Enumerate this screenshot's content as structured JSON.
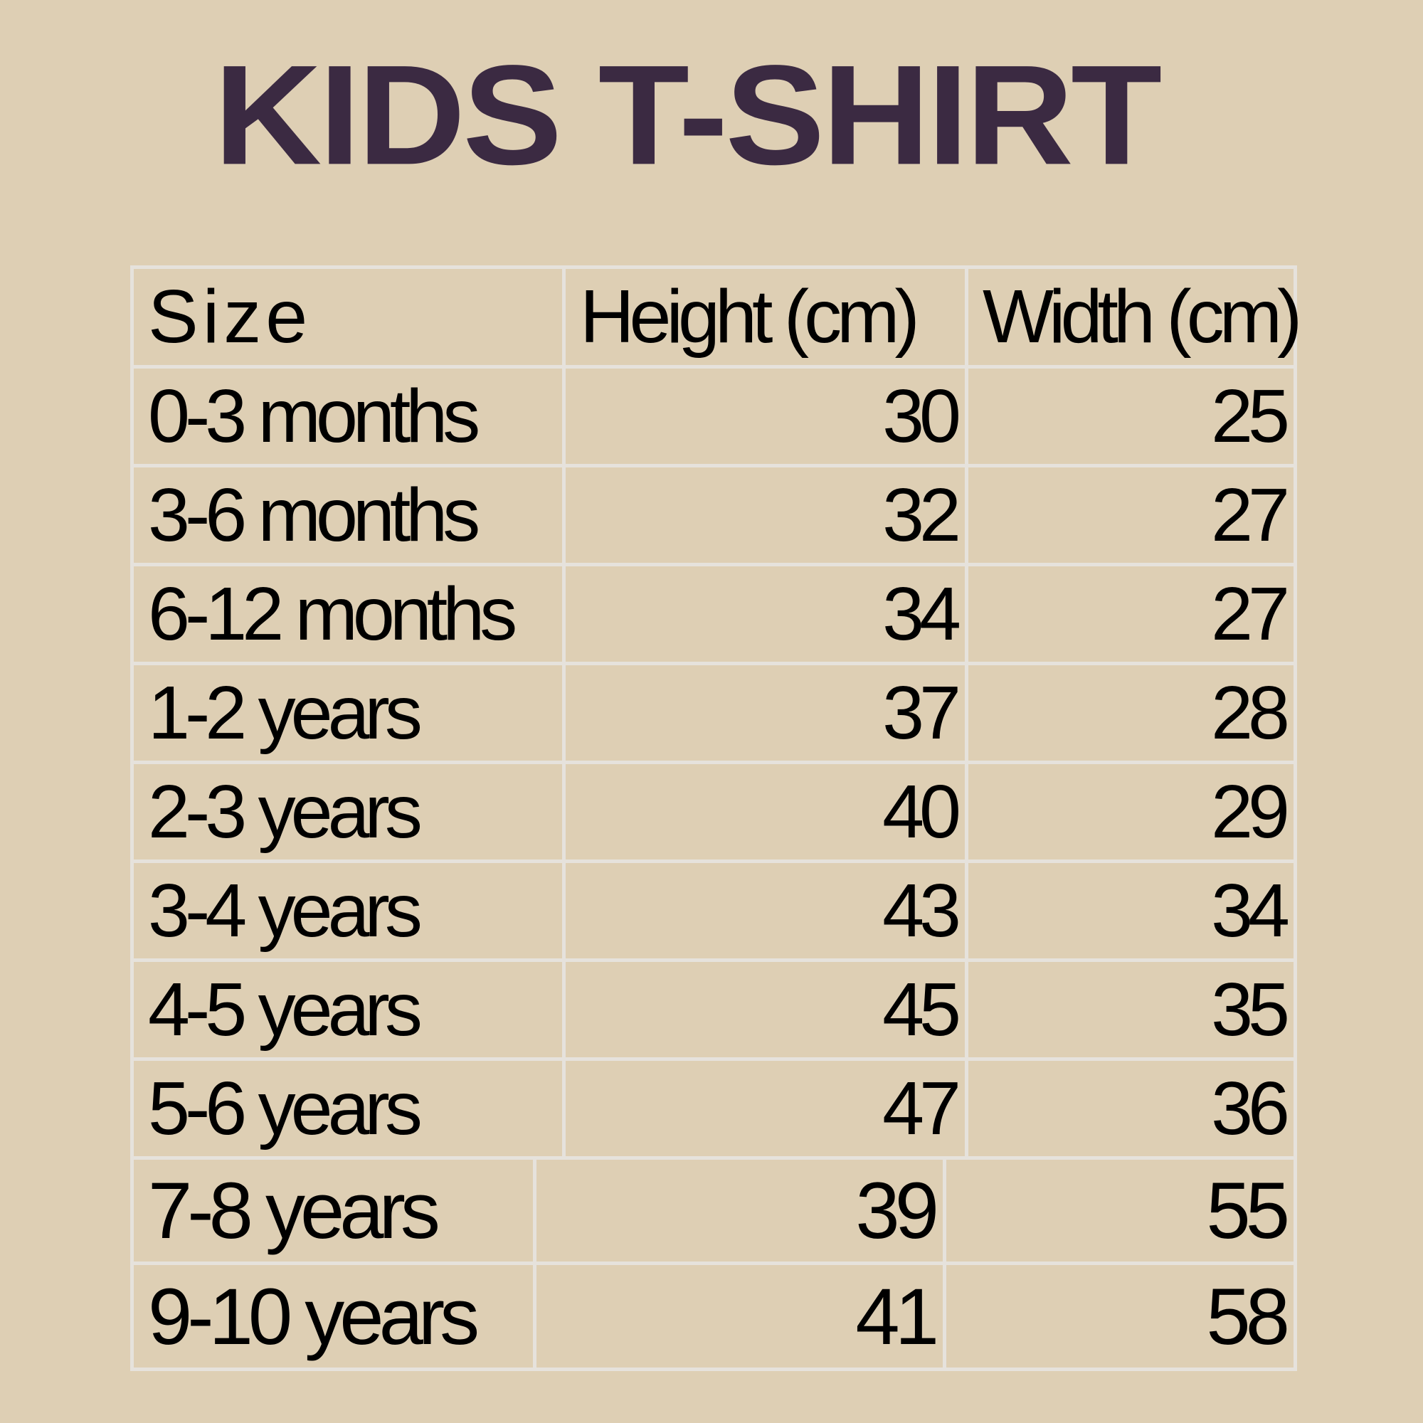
{
  "title": "KIDS T-SHIRT",
  "table": {
    "headers": [
      "Size",
      "Height (cm)",
      "Width (cm)"
    ],
    "rows": [
      [
        "0-3 months",
        "30",
        "25"
      ],
      [
        "3-6 months",
        "32",
        "27"
      ],
      [
        "6-12 months",
        "34",
        "27"
      ],
      [
        "1-2 years",
        "37",
        "28"
      ],
      [
        "2-3 years",
        "40",
        "29"
      ],
      [
        "3-4 years",
        "43",
        "34"
      ],
      [
        "4-5 years",
        "45",
        "35"
      ],
      [
        "5-6 years",
        "47",
        "36"
      ],
      [
        "7-8 years",
        "39",
        "55"
      ],
      [
        "9-10 years",
        "41",
        "58"
      ]
    ]
  },
  "colors": {
    "background": "#decfb4",
    "title": "#3b2a42",
    "grid": "#e6e2dc",
    "text": "#000000"
  }
}
